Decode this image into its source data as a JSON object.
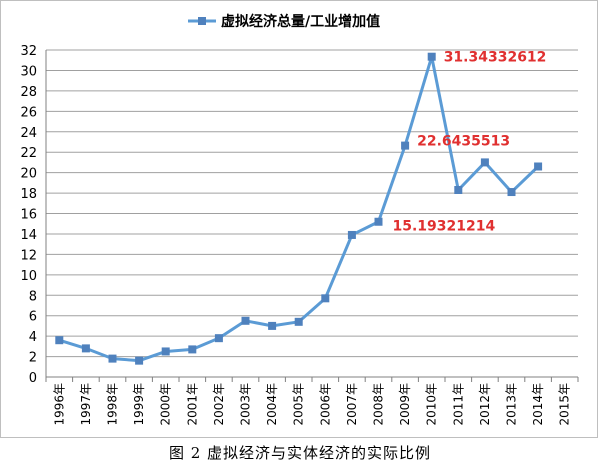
{
  "caption": "图 2   虚拟经济与实体经济的实际比例",
  "colors": {
    "series": "#5b9bd5",
    "marker": "#4f81bd",
    "annotation": "#e03030",
    "grid": "#a0a0a0",
    "axis": "#808080"
  },
  "chart_data": {
    "type": "line",
    "legend": {
      "placement": "top-center",
      "label": "虚拟经济总量/工业增加值"
    },
    "categories": [
      "1996年",
      "1997年",
      "1998年",
      "1999年",
      "2000年",
      "2001年",
      "2002年",
      "2003年",
      "2004年",
      "2005年",
      "2006年",
      "2007年",
      "2008年",
      "2009年",
      "2010年",
      "2011年",
      "2012年",
      "2013年",
      "2014年",
      "2015年"
    ],
    "series": [
      {
        "name": "虚拟经济总量/工业增加值",
        "values": [
          3.6,
          2.8,
          1.8,
          1.6,
          2.5,
          2.7,
          3.8,
          5.5,
          5.0,
          5.4,
          7.7,
          13.9,
          15.19321214,
          22.6435513,
          31.34332612,
          18.3,
          21.0,
          18.1,
          20.6,
          null
        ]
      }
    ],
    "annotations": [
      {
        "category": "2008年",
        "text": "15.19321214",
        "value": 15.19321214
      },
      {
        "category": "2009年",
        "text": "22.6435513",
        "value": 22.6435513
      },
      {
        "category": "2010年",
        "text": "31.34332612",
        "value": 31.34332612
      }
    ],
    "yticks": [
      "0",
      "2",
      "4",
      "6",
      "8",
      "10",
      "12",
      "14",
      "16",
      "18",
      "20",
      "22",
      "24",
      "26",
      "28",
      "30",
      "32"
    ],
    "ylim": [
      0,
      32
    ],
    "grid": true
  }
}
